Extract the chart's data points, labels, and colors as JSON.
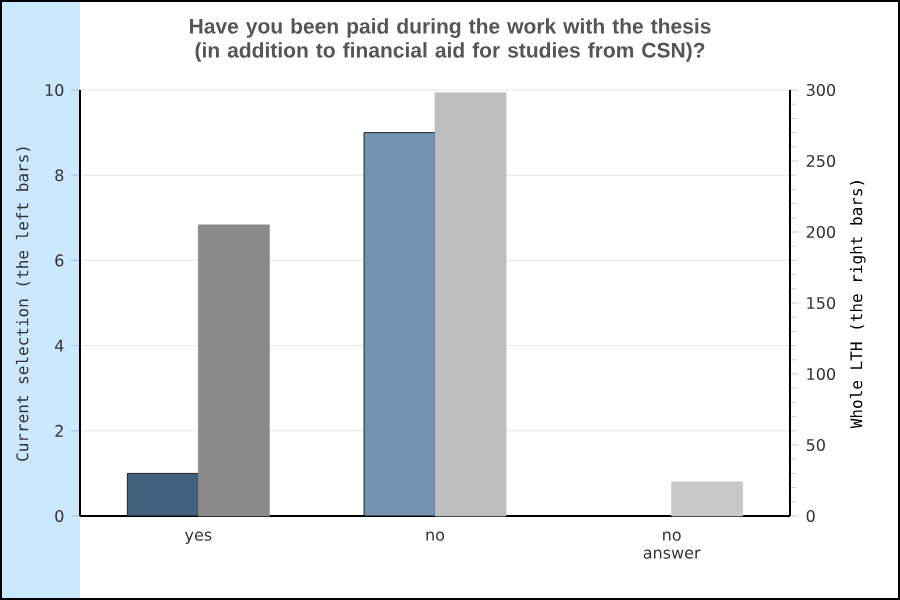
{
  "chart_data": {
    "type": "bar",
    "title": "Have you been paid during the work with the thesis (in addition to financial aid for studies from CSN)?",
    "categories": [
      "yes",
      "no",
      "no answer"
    ],
    "series": [
      {
        "name": null,
        "colors": [
          "#42617d",
          "#7393ae",
          "#7393ae"
        ],
        "values": [
          1,
          9,
          0
        ]
      },
      {
        "name": null,
        "axis": "y2",
        "colors": [
          "#8a8a8a",
          "#bebebe",
          "#c8c8c8"
        ],
        "values": [
          205,
          298,
          24
        ]
      }
    ],
    "ylabel": "Current selection (the left bars)",
    "y2label": "Whole LTH (the right bars)",
    "ylim": [
      0,
      10
    ],
    "yticks": [
      0,
      2,
      4,
      6,
      8,
      10
    ],
    "y2lim": [
      0,
      300
    ],
    "y2ticks": [
      0,
      50,
      100,
      150,
      200,
      250,
      300
    ],
    "grid": "y"
  }
}
